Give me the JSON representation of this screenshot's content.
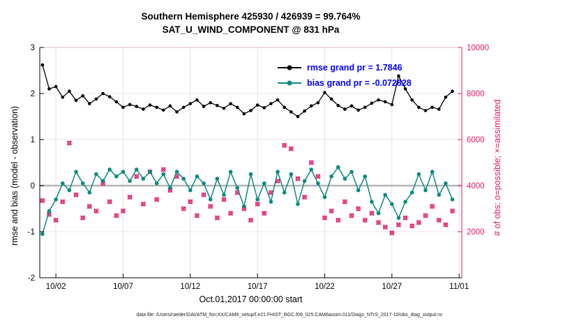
{
  "title": {
    "line1": "Southern Hemisphere 425930 / 426939 = 99.764%",
    "line2": "SAT_U_WIND_COMPONENT @ 831 hPa"
  },
  "chart_data": {
    "type": "line",
    "title_line1": "Southern Hemisphere 425930 / 426939 = 99.764%",
    "title_line2": "SAT_U_WIND_COMPONENT @ 831 hPa",
    "xlabel": "Oct.01,2017 00:00:00 start",
    "ylabel_left": "rmse and bias (model - observation)",
    "ylabel_right": "# of obs: o=possible; ×=assimilated",
    "xlim": [
      0.8,
      32.2
    ],
    "ylim_left": [
      -2,
      3
    ],
    "ylim_right": [
      0,
      10000
    ],
    "yticks_left": [
      -2,
      -1,
      0,
      1,
      2,
      3
    ],
    "yticks_right": [
      2000,
      4000,
      6000,
      8000,
      10000
    ],
    "x_ticks": [
      {
        "v": 2,
        "label": "10/02"
      },
      {
        "v": 7,
        "label": "10/07"
      },
      {
        "v": 12,
        "label": "10/12"
      },
      {
        "v": 17,
        "label": "10/17"
      },
      {
        "v": 22,
        "label": "10/22"
      },
      {
        "v": 27,
        "label": "10/27"
      },
      {
        "v": 32,
        "label": "11/01"
      }
    ],
    "grid": {
      "zero_line_color": "#b5b5b5",
      "grid_color": "#e4e4e4"
    },
    "legend_text_color": "#0000ff",
    "right_axis_color": "#e0186a",
    "x": [
      1,
      1.5,
      2,
      2.5,
      3,
      3.5,
      4,
      4.5,
      5,
      5.5,
      6,
      6.5,
      7,
      7.5,
      8,
      8.5,
      9,
      9.5,
      10,
      10.5,
      11,
      11.5,
      12,
      12.5,
      13,
      13.5,
      14,
      14.5,
      15,
      15.5,
      16,
      16.5,
      17,
      17.5,
      18,
      18.5,
      19,
      19.5,
      20,
      20.5,
      21,
      21.5,
      22,
      22.5,
      23,
      23.5,
      24,
      24.5,
      25,
      25.5,
      26,
      26.5,
      27,
      27.5,
      28,
      28.5,
      29,
      29.5,
      30,
      30.5,
      31,
      31.5
    ],
    "series": [
      {
        "name": "rmse",
        "legend": "rmse grand pr = 1.7846",
        "color": "#000000",
        "style": "line-dot",
        "axis": "left",
        "values": [
          2.62,
          2.1,
          2.15,
          1.92,
          2.05,
          1.85,
          1.95,
          1.78,
          1.88,
          2.0,
          1.93,
          1.82,
          1.7,
          1.76,
          1.72,
          1.66,
          1.75,
          1.7,
          1.64,
          1.73,
          1.6,
          1.7,
          1.78,
          1.86,
          1.72,
          1.8,
          1.74,
          1.68,
          1.78,
          1.7,
          1.56,
          1.63,
          1.75,
          1.69,
          1.78,
          1.86,
          1.7,
          1.6,
          1.5,
          1.62,
          1.73,
          1.8,
          2.02,
          1.88,
          1.74,
          1.66,
          1.73,
          1.64,
          1.7,
          1.79,
          1.86,
          1.82,
          1.76,
          2.38,
          2.1,
          1.86,
          1.7,
          1.63,
          1.7,
          1.66,
          1.92,
          2.05
        ]
      },
      {
        "name": "bias",
        "legend": "bias grand pr = -0.072828",
        "color": "#0d8a80",
        "style": "line-dot",
        "axis": "left",
        "values": [
          -1.05,
          -0.55,
          -0.3,
          0.05,
          -0.1,
          0.3,
          0.05,
          -0.15,
          0.25,
          0.1,
          0.35,
          0.2,
          0.3,
          0.1,
          0.35,
          0.15,
          0.3,
          0.05,
          0.25,
          -0.05,
          0.3,
          0.15,
          -0.1,
          0.2,
          0.05,
          -0.3,
          0.15,
          -0.2,
          0.3,
          -0.05,
          -0.45,
          0.25,
          -0.3,
          0.05,
          -0.35,
          0.3,
          -0.15,
          0.25,
          -0.4,
          0.1,
          0.35,
          0.05,
          -0.25,
          0.2,
          0.4,
          0.15,
          0.3,
          -0.1,
          0.2,
          -0.35,
          -0.6,
          -0.2,
          -0.4,
          -0.7,
          -0.35,
          -0.15,
          0.25,
          -0.1,
          0.3,
          -0.2,
          0.05,
          -0.3
        ]
      },
      {
        "name": "obs-possible",
        "color": "#e0186a",
        "style": "circle",
        "axis": "right",
        "values": [
          3350,
          2750,
          2500,
          3300,
          5850,
          3600,
          2600,
          3100,
          2900,
          4100,
          3300,
          2700,
          2900,
          3500,
          4400,
          3200,
          4600,
          3400,
          4700,
          3800,
          4400,
          3000,
          3300,
          2700,
          3600,
          3100,
          2600,
          3400,
          2800,
          3700,
          3000,
          2500,
          3200,
          2800,
          3700,
          4200,
          5750,
          5600,
          4300,
          3500,
          5000,
          4400,
          2600,
          2900,
          2500,
          3300,
          2700,
          3000,
          2500,
          2800,
          2400,
          2200,
          1950,
          2300,
          2600,
          2250,
          2400,
          2700,
          3100,
          2500,
          2300,
          2900
        ]
      },
      {
        "name": "obs-assimilated",
        "color": "#e0186a",
        "style": "x",
        "axis": "right",
        "values": [
          3350,
          2750,
          2500,
          3300,
          5850,
          3600,
          2600,
          3100,
          2900,
          4100,
          3300,
          2700,
          2900,
          3500,
          4400,
          3200,
          4600,
          3400,
          4700,
          3800,
          4400,
          3000,
          3300,
          2700,
          3600,
          3100,
          2600,
          3400,
          2800,
          3700,
          3000,
          2500,
          3200,
          2800,
          3700,
          4200,
          5750,
          5600,
          4300,
          3500,
          5000,
          4400,
          2600,
          2900,
          2500,
          3300,
          2700,
          3000,
          2500,
          2800,
          2400,
          2200,
          1950,
          2300,
          2600,
          2250,
          2400,
          2700,
          3100,
          2500,
          2300,
          2900
        ]
      }
    ],
    "footnote": "data file: /Users/raeder/DAI/ATM_forcXX/CAM6_setup/f.e21.FHIST_BGC.f09_025.CAM6assim.011/Diags_NTrS_2017-10/obs_diag_output.nc"
  }
}
